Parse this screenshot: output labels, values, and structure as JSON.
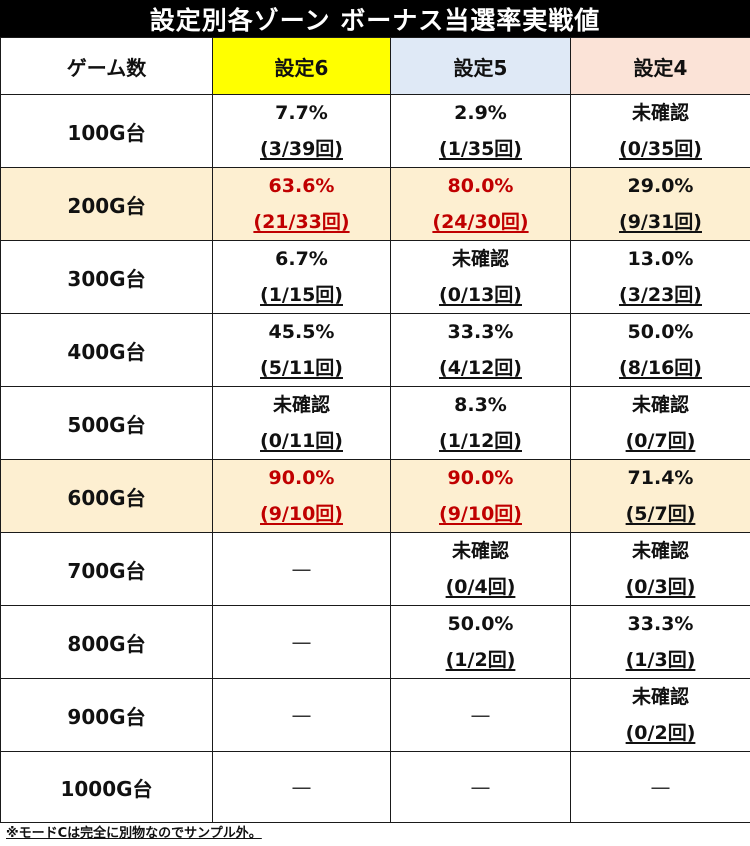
{
  "title": "設定別各ゾーン ボーナス当選率実戦値",
  "header": {
    "label": "ゲーム数",
    "columns": [
      "設定6",
      "設定5",
      "設定4"
    ]
  },
  "rows": [
    {
      "label": "100G台",
      "highlight": false,
      "cells": [
        {
          "rate": "7.7%",
          "count": "(3/39回)",
          "red": false
        },
        {
          "rate": "2.9%",
          "count": "(1/35回)",
          "red": false
        },
        {
          "rate": "未確認",
          "count": "(0/35回)",
          "red": false
        }
      ]
    },
    {
      "label": "200G台",
      "highlight": true,
      "cells": [
        {
          "rate": "63.6%",
          "count": "(21/33回)",
          "red": true
        },
        {
          "rate": "80.0%",
          "count": "(24/30回)",
          "red": true
        },
        {
          "rate": "29.0%",
          "count": "(9/31回)",
          "red": false
        }
      ]
    },
    {
      "label": "300G台",
      "highlight": false,
      "cells": [
        {
          "rate": "6.7%",
          "count": "(1/15回)",
          "red": false
        },
        {
          "rate": "未確認",
          "count": "(0/13回)",
          "red": false
        },
        {
          "rate": "13.0%",
          "count": "(3/23回)",
          "red": false
        }
      ]
    },
    {
      "label": "400G台",
      "highlight": false,
      "cells": [
        {
          "rate": "45.5%",
          "count": "(5/11回)",
          "red": false
        },
        {
          "rate": "33.3%",
          "count": "(4/12回)",
          "red": false
        },
        {
          "rate": "50.0%",
          "count": "(8/16回)",
          "red": false
        }
      ]
    },
    {
      "label": "500G台",
      "highlight": false,
      "cells": [
        {
          "rate": "未確認",
          "count": "(0/11回)",
          "red": false
        },
        {
          "rate": "8.3%",
          "count": "(1/12回)",
          "red": false
        },
        {
          "rate": "未確認",
          "count": "(0/7回)",
          "red": false
        }
      ]
    },
    {
      "label": "600G台",
      "highlight": true,
      "cells": [
        {
          "rate": "90.0%",
          "count": "(9/10回)",
          "red": true
        },
        {
          "rate": "90.0%",
          "count": "(9/10回)",
          "red": true
        },
        {
          "rate": "71.4%",
          "count": "(5/7回)",
          "red": false
        }
      ]
    },
    {
      "label": "700G台",
      "highlight": false,
      "cells": [
        {
          "dash": "—"
        },
        {
          "rate": "未確認",
          "count": "(0/4回)",
          "red": false
        },
        {
          "rate": "未確認",
          "count": "(0/3回)",
          "red": false
        }
      ]
    },
    {
      "label": "800G台",
      "highlight": false,
      "cells": [
        {
          "dash": "—"
        },
        {
          "rate": "50.0%",
          "count": "(1/2回)",
          "red": false
        },
        {
          "rate": "33.3%",
          "count": "(1/3回)",
          "red": false
        }
      ]
    },
    {
      "label": "900G台",
      "highlight": false,
      "cells": [
        {
          "dash": "—"
        },
        {
          "dash": "—"
        },
        {
          "rate": "未確認",
          "count": "(0/2回)",
          "red": false
        }
      ]
    },
    {
      "label": "1000G台",
      "highlight": false,
      "cells": [
        {
          "dash": "—"
        },
        {
          "dash": "—"
        },
        {
          "dash": "—"
        }
      ]
    }
  ],
  "note": "※モードCは完全に別物なのでサンプル外。",
  "colors": {
    "header_setting6": "#ffff00",
    "header_setting5": "#dfe9f6",
    "header_setting4": "#fbe3d7",
    "highlight_row": "#fdefd1",
    "red_text": "#c00000"
  }
}
